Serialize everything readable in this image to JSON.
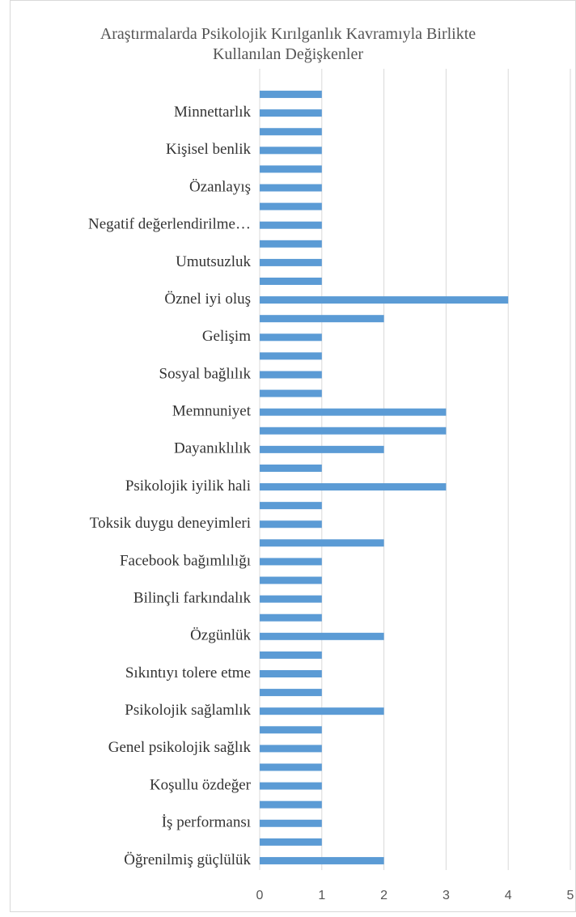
{
  "chart_data": {
    "type": "barh",
    "title": "Araştırmalarda Psikolojik Kırılganlık Kavramıyla Birlikte Kullanılan Değişkenler",
    "categories": [
      "Öğrenilmiş güçlülük",
      null,
      "İş performansı",
      null,
      "Koşullu özdeğer",
      null,
      "Genel psikolojik sağlık",
      null,
      "Psikolojik sağlamlık",
      null,
      "Sıkıntıyı tolere etme",
      null,
      "Özgünlük",
      null,
      "Bilinçli farkındalık",
      null,
      "Facebook bağımlılığı",
      null,
      "Toksik duygu deneyimleri",
      null,
      "Psikolojik iyilik hali",
      null,
      "Dayanıklılık",
      null,
      "Memnuniyet",
      null,
      "Sosyal bağlılık",
      null,
      "Gelişim",
      null,
      "Öznel iyi oluş",
      null,
      "Umutsuzluk",
      null,
      "Negatif değerlendirilme…",
      null,
      "Özanlayış",
      null,
      "Kişisel benlik",
      null,
      "Minnettarlık",
      null
    ],
    "values": [
      2,
      1,
      1,
      1,
      1,
      1,
      1,
      1,
      2,
      1,
      1,
      1,
      2,
      1,
      1,
      1,
      1,
      2,
      1,
      1,
      3,
      1,
      2,
      3,
      3,
      1,
      1,
      1,
      1,
      2,
      4,
      1,
      1,
      1,
      1,
      1,
      1,
      1,
      1,
      1,
      1,
      1
    ],
    "color": "#5b9bd5",
    "xlim": [
      0,
      5
    ],
    "xticks": [
      0,
      1,
      2,
      3,
      4,
      5
    ],
    "grid": true
  }
}
